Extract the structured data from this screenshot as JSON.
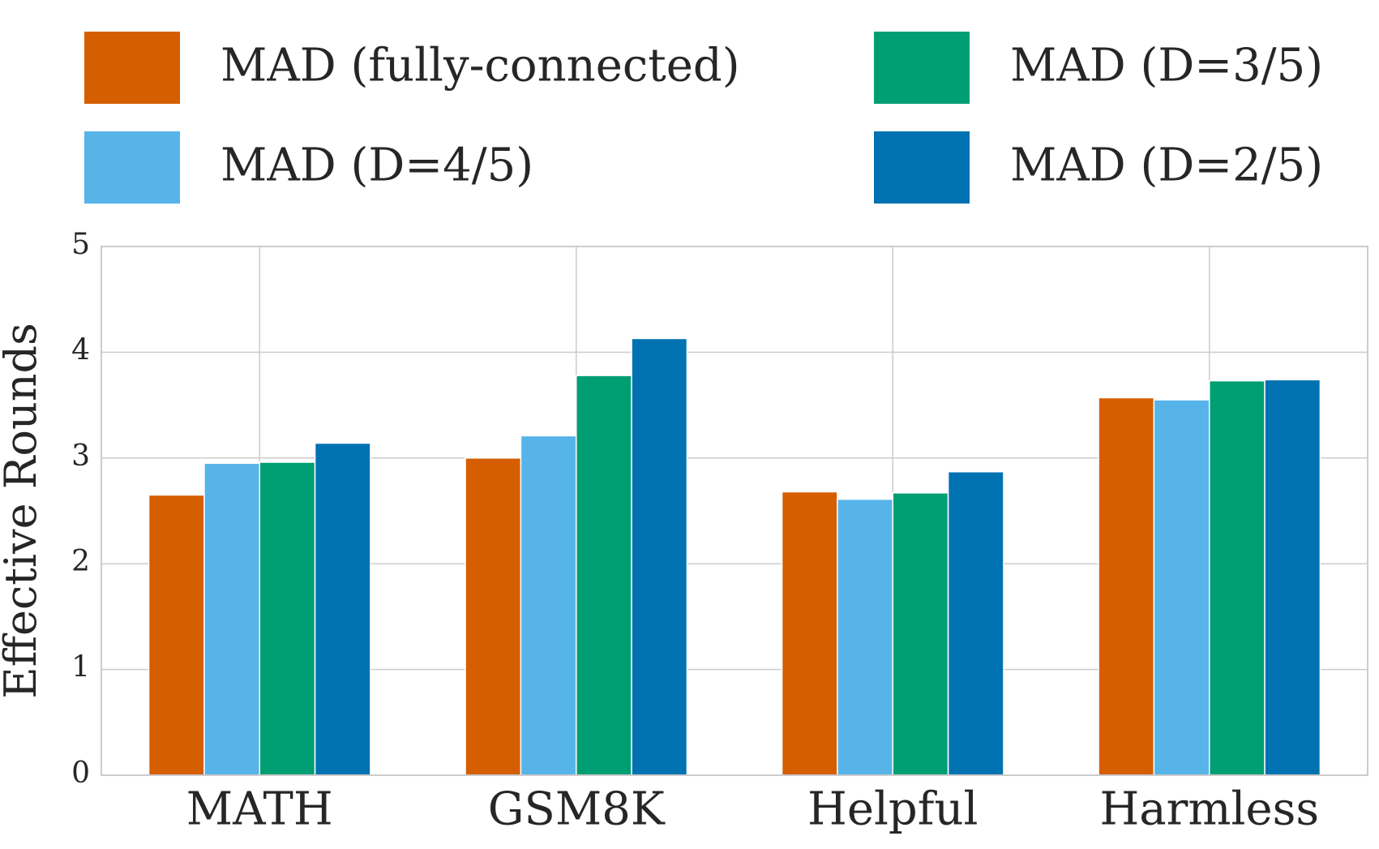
{
  "chart_data": {
    "type": "bar",
    "categories": [
      "MATH",
      "GSM8K",
      "Helpful",
      "Harmless"
    ],
    "series": [
      {
        "name": "MAD (fully-connected)",
        "color": "#d55e00",
        "values": [
          2.65,
          3.0,
          2.68,
          3.57
        ]
      },
      {
        "name": "MAD (D=4/5)",
        "color": "#56b4e9",
        "values": [
          2.95,
          3.21,
          2.61,
          3.55
        ]
      },
      {
        "name": "MAD (D=3/5)",
        "color": "#009e73",
        "values": [
          2.96,
          3.78,
          2.67,
          3.73
        ]
      },
      {
        "name": "MAD (D=2/5)",
        "color": "#0072b2",
        "values": [
          3.14,
          4.13,
          2.87,
          3.74
        ]
      }
    ],
    "ylabel": "Effective Rounds",
    "ylim": [
      0,
      5
    ],
    "yticks": [
      0,
      1,
      2,
      3,
      4,
      5
    ],
    "grid": true,
    "legend": "top"
  }
}
